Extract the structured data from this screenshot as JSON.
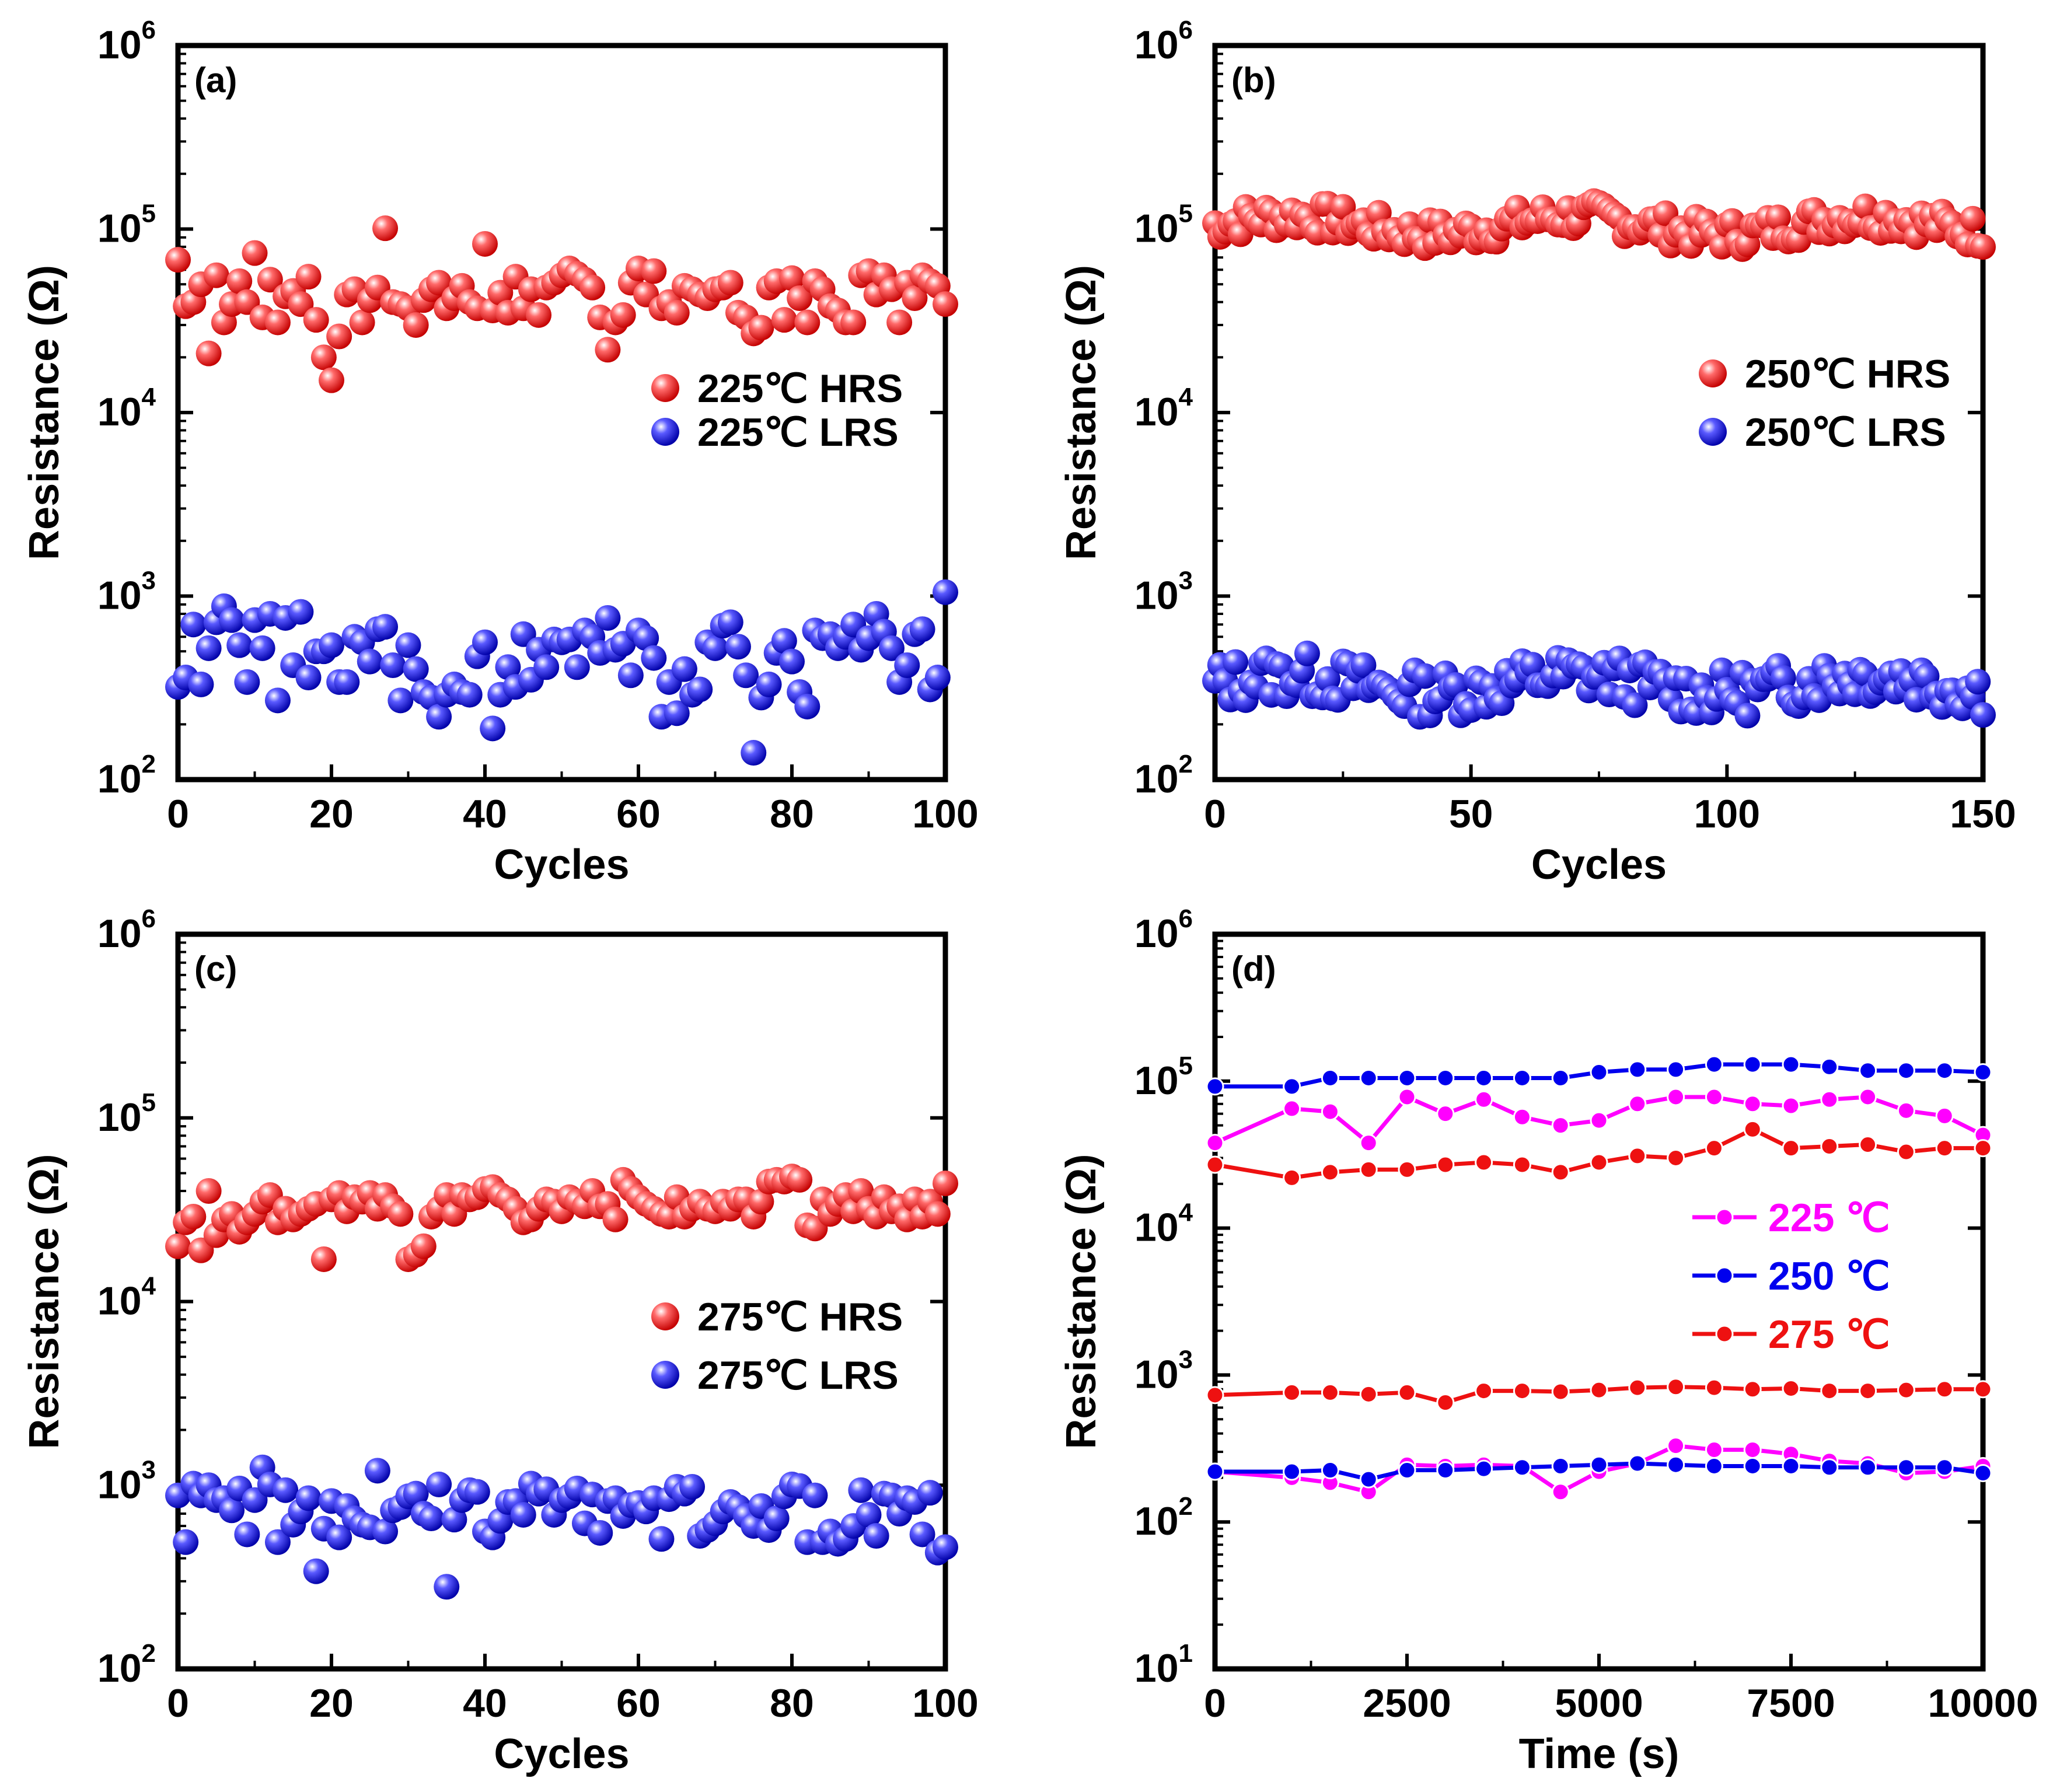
{
  "colors": {
    "hrs": "#ff0000",
    "lrs": "#0000ee",
    "t225": "#ff00ff",
    "t250": "#0000ee",
    "t275": "#ee1111",
    "axis": "#000000"
  },
  "chart_data": [
    {
      "id": "a",
      "type": "scatter",
      "panel_label": "(a)",
      "xlabel": "Cycles",
      "ylabel": "Resistance (Ω)",
      "xlim": [
        0,
        100
      ],
      "ylim_log10": [
        2,
        6
      ],
      "yscale": "log",
      "xticks": [
        "0",
        "20",
        "40",
        "60",
        "80",
        "100"
      ],
      "yticks": [
        {
          "base": "10",
          "exp": "2"
        },
        {
          "base": "10",
          "exp": "3"
        },
        {
          "base": "10",
          "exp": "4"
        },
        {
          "base": "10",
          "exp": "5"
        },
        {
          "base": "10",
          "exp": "6"
        }
      ],
      "legend": [
        "225℃ HRS",
        "225℃ LRS"
      ],
      "series": [
        {
          "name": "225℃ HRS",
          "color_key": "hrs",
          "y": [
            68000,
            38000,
            40000,
            50000,
            21000,
            56000,
            31000,
            39000,
            52000,
            40000,
            74000,
            33000,
            53000,
            31000,
            43000,
            46000,
            39000,
            55000,
            32000,
            20000,
            15000,
            26000,
            44000,
            47000,
            31000,
            41000,
            48000,
            101000,
            40000,
            39000,
            37000,
            30000,
            41000,
            47000,
            51000,
            37000,
            42000,
            49000,
            40000,
            37000,
            83000,
            36000,
            45000,
            35000,
            55000,
            37000,
            47000,
            34000,
            48000,
            51000,
            56000,
            61000,
            57000,
            53000,
            48000,
            33000,
            22000,
            31000,
            34000,
            51000,
            61000,
            44000,
            59000,
            37000,
            40000,
            35000,
            49000,
            47000,
            44000,
            42000,
            47000,
            48000,
            51000,
            35000,
            33000,
            27000,
            29000,
            48000,
            52000,
            32000,
            54000,
            42000,
            31000,
            52000,
            47000,
            38000,
            36000,
            31000,
            31000,
            56000,
            59000,
            44000,
            56000,
            47000,
            31000,
            51000,
            42000,
            56000,
            52000,
            49000,
            39000
          ]
        },
        {
          "name": "225℃ LRS",
          "color_key": "lrs",
          "y": [
            320,
            360,
            700,
            330,
            520,
            720,
            880,
            740,
            540,
            340,
            740,
            520,
            800,
            270,
            760,
            420,
            820,
            360,
            500,
            500,
            540,
            340,
            340,
            600,
            560,
            440,
            660,
            680,
            420,
            270,
            540,
            400,
            300,
            280,
            220,
            290,
            330,
            300,
            290,
            470,
            560,
            190,
            290,
            410,
            320,
            620,
            350,
            510,
            410,
            580,
            560,
            580,
            410,
            650,
            600,
            490,
            760,
            510,
            550,
            370,
            650,
            590,
            460,
            220,
            340,
            230,
            400,
            290,
            310,
            560,
            520,
            690,
            720,
            530,
            370,
            140,
            280,
            330,
            490,
            570,
            440,
            300,
            250,
            650,
            590,
            620,
            520,
            600,
            700,
            510,
            590,
            800,
            640,
            520,
            340,
            420,
            620,
            660,
            310,
            360,
            1050
          ]
        }
      ]
    },
    {
      "id": "b",
      "type": "scatter",
      "panel_label": "(b)",
      "xlabel": "Cycles",
      "ylabel": "Resistance (Ω)",
      "xlim": [
        0,
        150
      ],
      "ylim_log10": [
        2,
        6
      ],
      "yscale": "log",
      "xticks": [
        "0",
        "50",
        "100",
        "150"
      ],
      "yticks": [
        {
          "base": "10",
          "exp": "2"
        },
        {
          "base": "10",
          "exp": "3"
        },
        {
          "base": "10",
          "exp": "4"
        },
        {
          "base": "10",
          "exp": "5"
        },
        {
          "base": "10",
          "exp": "6"
        }
      ],
      "legend": [
        "250℃ HRS",
        "250℃ LRS"
      ],
      "series": [
        {
          "name": "250℃ HRS",
          "color_key": "hrs",
          "base": 105000,
          "amp": 0.09,
          "n": 151,
          "seed": 7
        },
        {
          "name": "250℃ LRS",
          "color_key": "lrs",
          "base": 330,
          "amp": 0.13,
          "n": 151,
          "seed": 13
        }
      ]
    },
    {
      "id": "c",
      "type": "scatter",
      "panel_label": "(c)",
      "xlabel": "Cycles",
      "ylabel": "Resistance (Ω)",
      "xlim": [
        0,
        100
      ],
      "ylim_log10": [
        2,
        6
      ],
      "yscale": "log",
      "xticks": [
        "0",
        "20",
        "40",
        "60",
        "80",
        "100"
      ],
      "yticks": [
        {
          "base": "10",
          "exp": "2"
        },
        {
          "base": "10",
          "exp": "3"
        },
        {
          "base": "10",
          "exp": "4"
        },
        {
          "base": "10",
          "exp": "5"
        },
        {
          "base": "10",
          "exp": "6"
        }
      ],
      "legend": [
        "275℃ HRS",
        "275℃ LRS"
      ],
      "series": [
        {
          "name": "275℃ HRS",
          "color_key": "hrs",
          "y": [
            20000,
            27000,
            29000,
            19000,
            40000,
            23000,
            28000,
            30000,
            24000,
            27000,
            30000,
            35000,
            38000,
            27000,
            32000,
            28000,
            30000,
            32000,
            34000,
            17000,
            36000,
            39000,
            31000,
            37000,
            35000,
            39000,
            32000,
            38000,
            33000,
            30000,
            17000,
            18000,
            20000,
            29000,
            32000,
            38000,
            30000,
            38000,
            36000,
            37000,
            41000,
            42000,
            38000,
            36000,
            32000,
            27000,
            28000,
            32000,
            36000,
            35000,
            31000,
            37000,
            35000,
            33000,
            40000,
            33000,
            34000,
            28000,
            46000,
            41000,
            37000,
            34000,
            32000,
            30000,
            29000,
            37000,
            29000,
            32000,
            35000,
            32000,
            31000,
            35000,
            32000,
            36000,
            36000,
            29000,
            35000,
            45000,
            46000,
            45000,
            48000,
            46000,
            26000,
            25000,
            36000,
            30000,
            34000,
            38000,
            31000,
            40000,
            32000,
            29000,
            37000,
            31000,
            33000,
            28000,
            36000,
            29000,
            35000,
            30000,
            44000
          ]
        },
        {
          "name": "275℃ LRS",
          "color_key": "lrs",
          "y": [
            880,
            490,
            1020,
            880,
            1000,
            830,
            850,
            730,
            960,
            540,
            830,
            1250,
            1010,
            490,
            940,
            610,
            720,
            850,
            340,
            580,
            820,
            520,
            770,
            660,
            610,
            590,
            1200,
            560,
            730,
            760,
            870,
            900,
            700,
            660,
            1010,
            280,
            650,
            830,
            940,
            920,
            560,
            520,
            640,
            810,
            820,
            690,
            1020,
            900,
            950,
            690,
            830,
            870,
            960,
            620,
            890,
            550,
            820,
            850,
            680,
            780,
            800,
            720,
            850,
            510,
            840,
            980,
            900,
            980,
            530,
            570,
            620,
            720,
            810,
            760,
            680,
            600,
            770,
            570,
            660,
            870,
            1010,
            990,
            490,
            880,
            490,
            560,
            480,
            510,
            600,
            940,
            690,
            530,
            900,
            880,
            700,
            850,
            810,
            540,
            910,
            430,
            460
          ]
        }
      ]
    },
    {
      "id": "d",
      "type": "line",
      "panel_label": "(d)",
      "xlabel": "Time (s)",
      "ylabel": "Resistance (Ω)",
      "xlim": [
        0,
        10000
      ],
      "ylim_log10": [
        1,
        6
      ],
      "yscale": "log",
      "xticks": [
        "0",
        "2500",
        "5000",
        "7500",
        "10000"
      ],
      "yticks": [
        {
          "base": "10",
          "exp": "1"
        },
        {
          "base": "10",
          "exp": "2"
        },
        {
          "base": "10",
          "exp": "3"
        },
        {
          "base": "10",
          "exp": "4"
        },
        {
          "base": "10",
          "exp": "5"
        },
        {
          "base": "10",
          "exp": "6"
        }
      ],
      "legend": [
        "225 ℃",
        "250 ℃",
        "275 ℃"
      ],
      "x": [
        0,
        1000,
        1500,
        2000,
        2500,
        3000,
        3500,
        4000,
        4500,
        5000,
        5500,
        6000,
        6500,
        7000,
        7500,
        8000,
        8500,
        9000,
        9500,
        10000
      ],
      "series": [
        {
          "name": "225 ℃",
          "color_key": "t225",
          "role": "HRS",
          "y": [
            38000,
            65000,
            62000,
            38000,
            78000,
            60000,
            75000,
            57000,
            50000,
            54000,
            70000,
            78000,
            78000,
            70000,
            68000,
            75000,
            78000,
            63000,
            58000,
            43000
          ]
        },
        {
          "name": "250 ℃",
          "color_key": "t250",
          "role": "HRS",
          "y": [
            92000,
            92000,
            105000,
            105000,
            105000,
            105000,
            105000,
            105000,
            105000,
            115000,
            120000,
            120000,
            130000,
            130000,
            130000,
            125000,
            118000,
            118000,
            118000,
            115000
          ]
        },
        {
          "name": "275 ℃",
          "color_key": "t275",
          "role": "HRS",
          "y": [
            27000,
            22000,
            24000,
            25000,
            25000,
            27000,
            28000,
            27000,
            24000,
            28000,
            31000,
            30000,
            35000,
            47000,
            35000,
            36000,
            37000,
            33000,
            35000,
            35000
          ]
        },
        {
          "name": "275 ℃",
          "color_key": "t275",
          "role": "LRS",
          "y": [
            730,
            760,
            760,
            740,
            760,
            650,
            780,
            780,
            770,
            790,
            820,
            830,
            820,
            800,
            810,
            780,
            780,
            790,
            800,
            800
          ]
        },
        {
          "name": "225 ℃",
          "color_key": "t225",
          "role": "LRS",
          "y": [
            220,
            200,
            185,
            160,
            245,
            240,
            245,
            240,
            160,
            220,
            250,
            330,
            310,
            310,
            290,
            260,
            250,
            215,
            220,
            240
          ]
        },
        {
          "name": "250 ℃",
          "color_key": "t250",
          "role": "LRS",
          "y": [
            220,
            220,
            225,
            195,
            225,
            225,
            230,
            235,
            240,
            245,
            250,
            245,
            240,
            240,
            240,
            235,
            235,
            235,
            235,
            215
          ]
        }
      ]
    }
  ]
}
